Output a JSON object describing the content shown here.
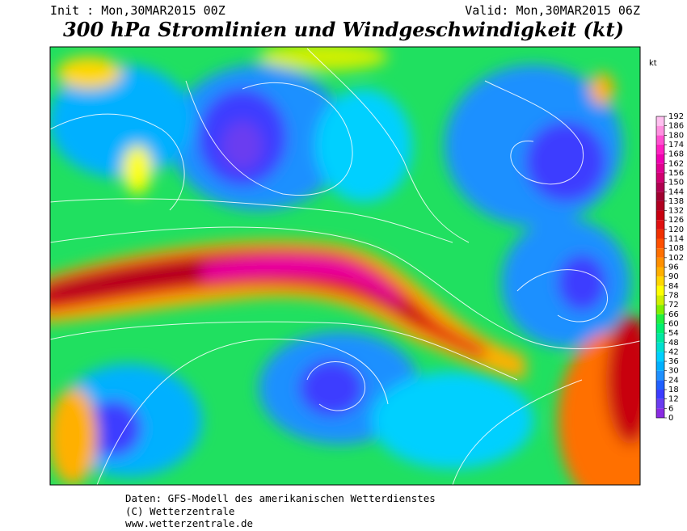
{
  "header": {
    "init": "Init : Mon,30MAR2015 00Z",
    "valid": "Valid: Mon,30MAR2015 06Z",
    "title": "300 hPa Stromlinien und Windgeschwindigkeit (kt)"
  },
  "colorbar": {
    "unit": "kt",
    "ticks": [
      0,
      6,
      12,
      18,
      24,
      30,
      36,
      42,
      48,
      54,
      60,
      66,
      72,
      78,
      84,
      90,
      96,
      102,
      108,
      114,
      120,
      126,
      132,
      138,
      144,
      150,
      156,
      162,
      168,
      174,
      180,
      186,
      192
    ],
    "colors": [
      "#8a2be2",
      "#6a3cf0",
      "#3c3cff",
      "#2060ff",
      "#1e90ff",
      "#00b0ff",
      "#00d0ff",
      "#00e0d0",
      "#00e8a0",
      "#00f070",
      "#20f040",
      "#80f000",
      "#d0f000",
      "#ffff00",
      "#ffd700",
      "#ffb000",
      "#ff9000",
      "#ff7000",
      "#ff5000",
      "#f03000",
      "#e01010",
      "#c80010",
      "#b00020",
      "#a00030",
      "#b00050",
      "#d00070",
      "#e00090",
      "#f000b0",
      "#ff20c0",
      "#ff50d0",
      "#ff90e0",
      "#ffc0f0"
    ]
  },
  "footer": [
    "Daten: GFS-Modell des amerikanischen Wetterdienstes",
    "(C) Wetterzentrale",
    "www.wetterzentrale.de"
  ]
}
